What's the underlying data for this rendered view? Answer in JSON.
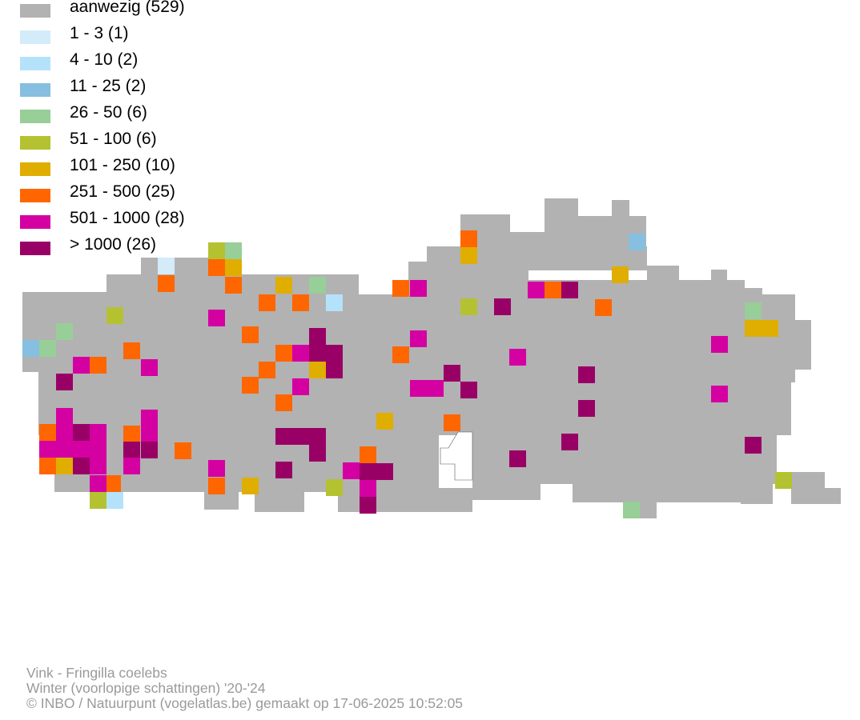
{
  "legend": [
    {
      "label": "aanwezig (529)",
      "color": "#b2b2b2"
    },
    {
      "label": "1 - 3 (1)",
      "color": "#d4ebfa"
    },
    {
      "label": "4 - 10 (2)",
      "color": "#b5e2fb"
    },
    {
      "label": "11 - 25 (2)",
      "color": "#86bfdf"
    },
    {
      "label": "26 - 50 (6)",
      "color": "#98ce98"
    },
    {
      "label": "51 - 100 (6)",
      "color": "#b4c232"
    },
    {
      "label": "101 - 250 (10)",
      "color": "#dfae00"
    },
    {
      "label": "251 - 500 (25)",
      "color": "#ff6600"
    },
    {
      "label": "501 - 1000 (28)",
      "color": "#d400a2"
    },
    {
      "label": "> 1000 (26)",
      "color": "#990066"
    }
  ],
  "credits": {
    "species": "Vink - Fringilla coelebs",
    "season": "Winter (voorlopige schattingen) '20-'24",
    "source": "© INBO / Natuurpunt (vogelatlas.be) gemaakt op 17-06-2025 10:52:05"
  }
}
